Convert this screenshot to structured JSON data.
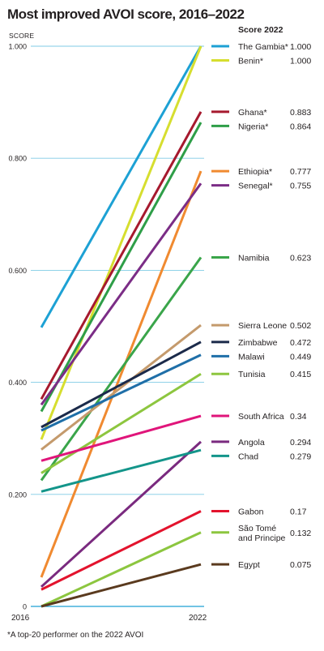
{
  "chart_data": {
    "type": "line",
    "title": "Most improved AVOI score, 2016–2022",
    "ylabel": "SCORE",
    "x": [
      "2016",
      "2022"
    ],
    "ylim": [
      0,
      1.0
    ],
    "yticks": [
      "0",
      "0.200",
      "0.400",
      "0.600",
      "0.800",
      "1.000"
    ],
    "grid": true,
    "legend_title": "Score 2022",
    "legend_position": "right",
    "series": [
      {
        "name": "The Gambia*",
        "label2022": "1.000",
        "color": "#1da1d4",
        "values": [
          0.498,
          1.0
        ]
      },
      {
        "name": "Benin*",
        "label2022": "1.000",
        "color": "#d6de2f",
        "values": [
          0.298,
          1.0
        ]
      },
      {
        "name": "Ghana*",
        "label2022": "0.883",
        "color": "#a6192e",
        "values": [
          0.37,
          0.883
        ]
      },
      {
        "name": "Nigeria*",
        "label2022": "0.864",
        "color": "#2e9e48",
        "values": [
          0.348,
          0.864
        ]
      },
      {
        "name": "Ethiopia*",
        "label2022": "0.777",
        "color": "#f08a30",
        "values": [
          0.052,
          0.777
        ]
      },
      {
        "name": "Senegal*",
        "label2022": "0.755",
        "color": "#7b2d86",
        "values": [
          0.36,
          0.755
        ]
      },
      {
        "name": "Namibia",
        "label2022": "0.623",
        "color": "#3aa54a",
        "values": [
          0.225,
          0.623
        ]
      },
      {
        "name": "Sierra Leone",
        "label2022": "0.502",
        "color": "#c49a6c",
        "values": [
          0.28,
          0.502
        ]
      },
      {
        "name": "Zimbabwe",
        "label2022": "0.472",
        "color": "#1b2a4a",
        "values": [
          0.32,
          0.472
        ]
      },
      {
        "name": "Malawi",
        "label2022": "0.449",
        "color": "#1f6fa8",
        "values": [
          0.314,
          0.449
        ]
      },
      {
        "name": "Tunisia",
        "label2022": "0.415",
        "color": "#8dc63f",
        "values": [
          0.238,
          0.415
        ]
      },
      {
        "name": "South Africa",
        "label2022": "0.34",
        "color": "#e0157a",
        "values": [
          0.26,
          0.34
        ]
      },
      {
        "name": "Angola",
        "label2022": "0.294",
        "color": "#7a2a7f",
        "values": [
          0.035,
          0.294
        ]
      },
      {
        "name": "Chad",
        "label2022": "0.279",
        "color": "#13958a",
        "values": [
          0.205,
          0.279
        ]
      },
      {
        "name": "Gabon",
        "label2022": "0.17",
        "color": "#e3132d",
        "values": [
          0.03,
          0.17
        ]
      },
      {
        "name": "São Tomé and Principe",
        "label2022": "0.132",
        "color": "#8cc63f",
        "values": [
          0.0,
          0.132
        ]
      },
      {
        "name": "Egypt",
        "label2022": "0.075",
        "color": "#5a3a1e",
        "values": [
          0.0,
          0.075
        ]
      }
    ]
  },
  "footnote": "*A top-20 performer on the 2022 AVOI"
}
